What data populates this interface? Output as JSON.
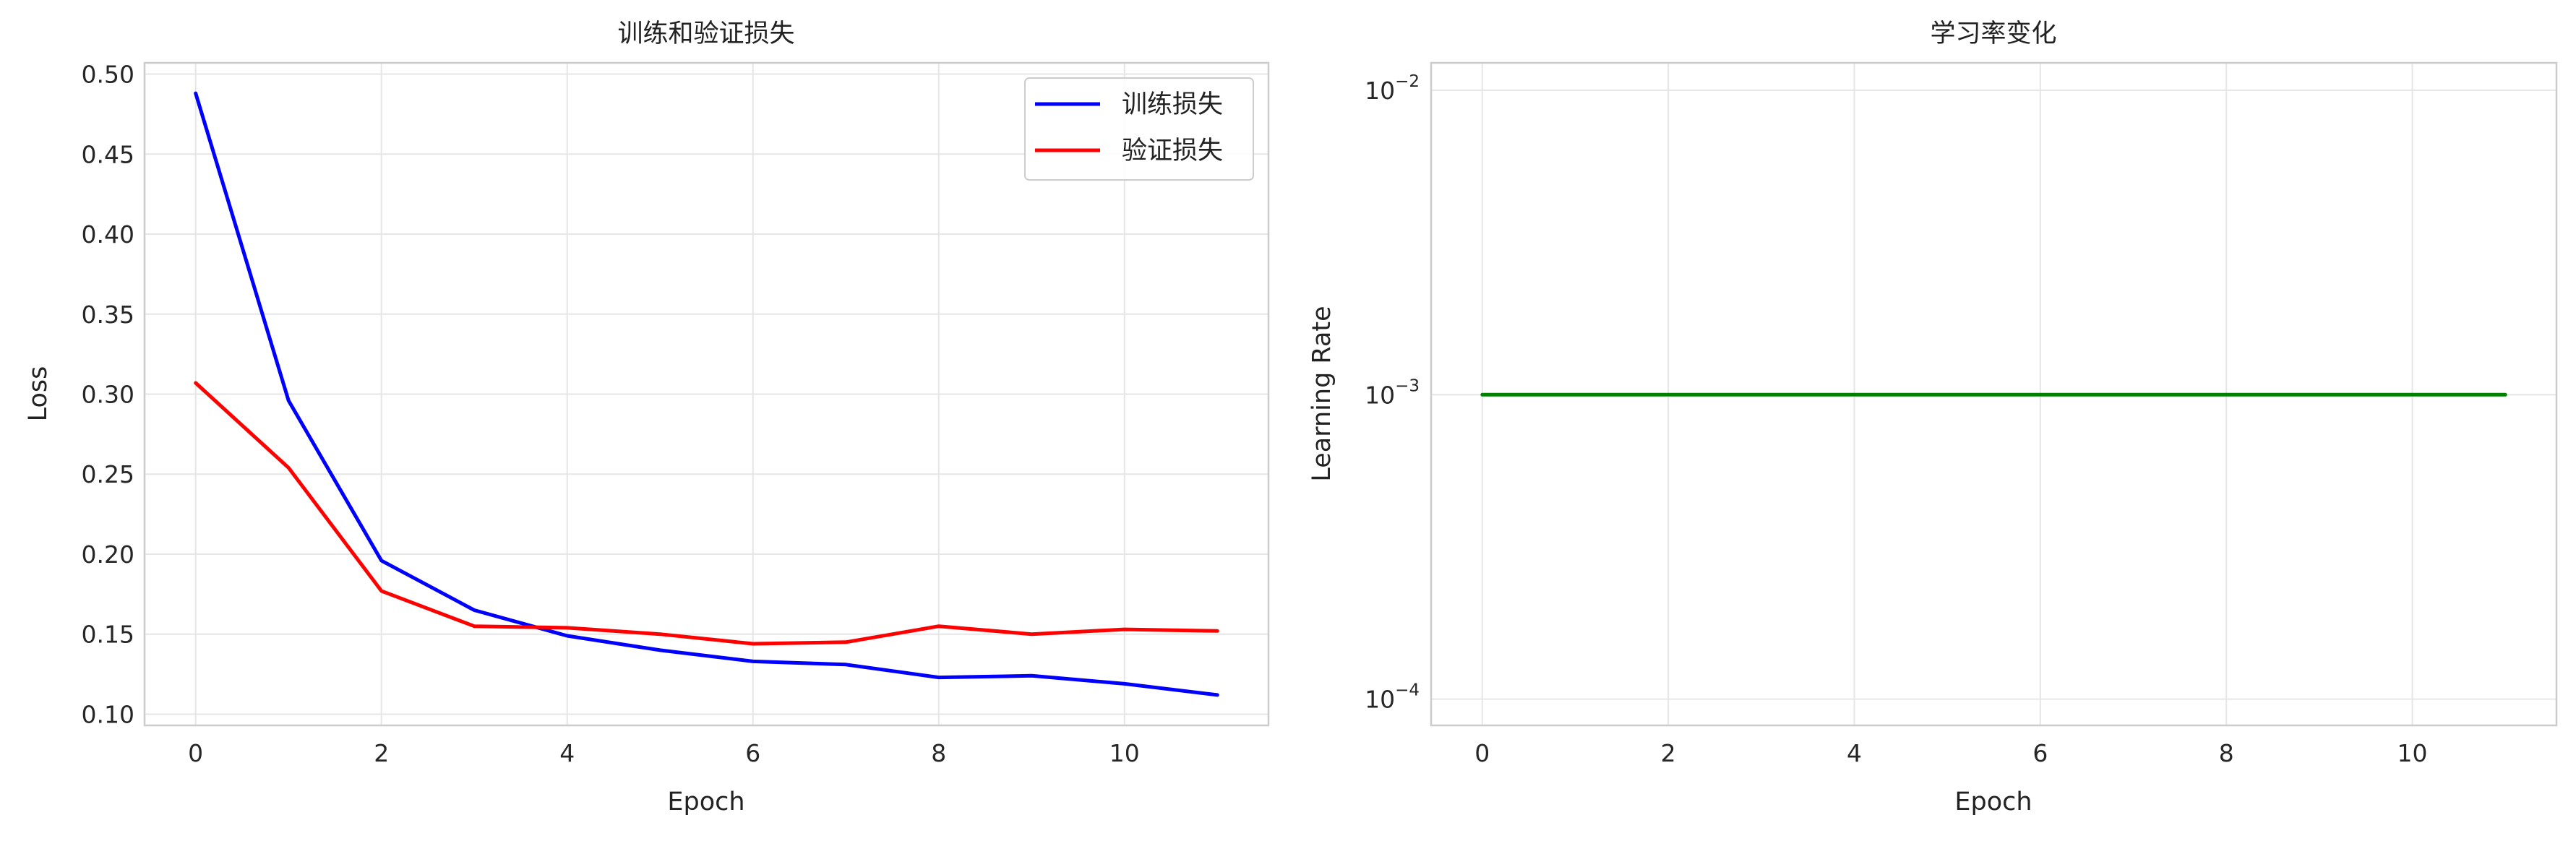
{
  "chart_data": [
    {
      "type": "line",
      "title": "训练和验证损失",
      "xlabel": "Epoch",
      "ylabel": "Loss",
      "xlim": [
        -0.55,
        11.55
      ],
      "ylim": [
        0.093,
        0.507
      ],
      "xticks": [
        0,
        2,
        4,
        6,
        8,
        10
      ],
      "yticks": [
        0.1,
        0.15,
        0.2,
        0.25,
        0.3,
        0.35,
        0.4,
        0.45,
        0.5
      ],
      "ytick_labels": [
        "0.10",
        "0.15",
        "0.20",
        "0.25",
        "0.30",
        "0.35",
        "0.40",
        "0.45",
        "0.50"
      ],
      "grid": true,
      "legend_position": "upper right",
      "x": [
        0,
        1,
        2,
        3,
        4,
        5,
        6,
        7,
        8,
        9,
        10,
        11
      ],
      "series": [
        {
          "name": "训练损失",
          "color": "#0000ff",
          "values": [
            0.488,
            0.296,
            0.196,
            0.165,
            0.149,
            0.14,
            0.133,
            0.131,
            0.123,
            0.124,
            0.119,
            0.112
          ]
        },
        {
          "name": "验证损失",
          "color": "#ff0000",
          "values": [
            0.307,
            0.254,
            0.177,
            0.155,
            0.154,
            0.15,
            0.144,
            0.145,
            0.155,
            0.15,
            0.153,
            0.152
          ]
        }
      ]
    },
    {
      "type": "line",
      "title": "学习率变化",
      "xlabel": "Epoch",
      "ylabel": "Learning Rate",
      "yscale": "log",
      "xlim": [
        -0.55,
        11.55
      ],
      "ylim": [
        8.2e-05,
        0.0123
      ],
      "xticks": [
        0,
        2,
        4,
        6,
        8,
        10
      ],
      "yticks": [
        0.0001,
        0.001,
        0.01
      ],
      "ytick_labels": [
        {
          "base": "10",
          "exp": "−4"
        },
        {
          "base": "10",
          "exp": "−3"
        },
        {
          "base": "10",
          "exp": "−2"
        }
      ],
      "grid": true,
      "x": [
        0,
        1,
        2,
        3,
        4,
        5,
        6,
        7,
        8,
        9,
        10,
        11
      ],
      "series": [
        {
          "color": "#008000",
          "values": [
            0.001,
            0.001,
            0.001,
            0.001,
            0.001,
            0.001,
            0.001,
            0.001,
            0.001,
            0.001,
            0.001,
            0.001
          ]
        }
      ]
    }
  ]
}
